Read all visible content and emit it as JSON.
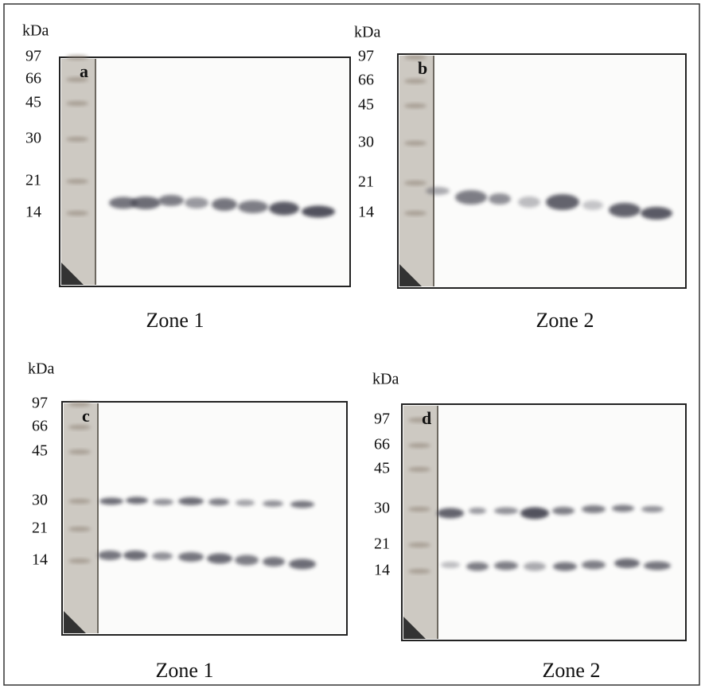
{
  "panels": [
    {
      "unit": "kDa",
      "letter": "a",
      "markers": [
        "97",
        "66",
        "45",
        "30",
        "21",
        "14"
      ],
      "caption": "Zone 1"
    },
    {
      "unit": "kDa",
      "letter": "b",
      "markers": [
        "97",
        "66",
        "45",
        "30",
        "21",
        "14"
      ],
      "caption": "Zone 2"
    },
    {
      "unit": "kDa",
      "letter": "c",
      "markers": [
        "97",
        "66",
        "45",
        "30",
        "21",
        "14"
      ],
      "caption": "Zone 1"
    },
    {
      "unit": "kDa",
      "letter": "d",
      "markers": [
        "97",
        "66",
        "45",
        "30",
        "21",
        "14"
      ],
      "caption": "Zone 2"
    }
  ]
}
